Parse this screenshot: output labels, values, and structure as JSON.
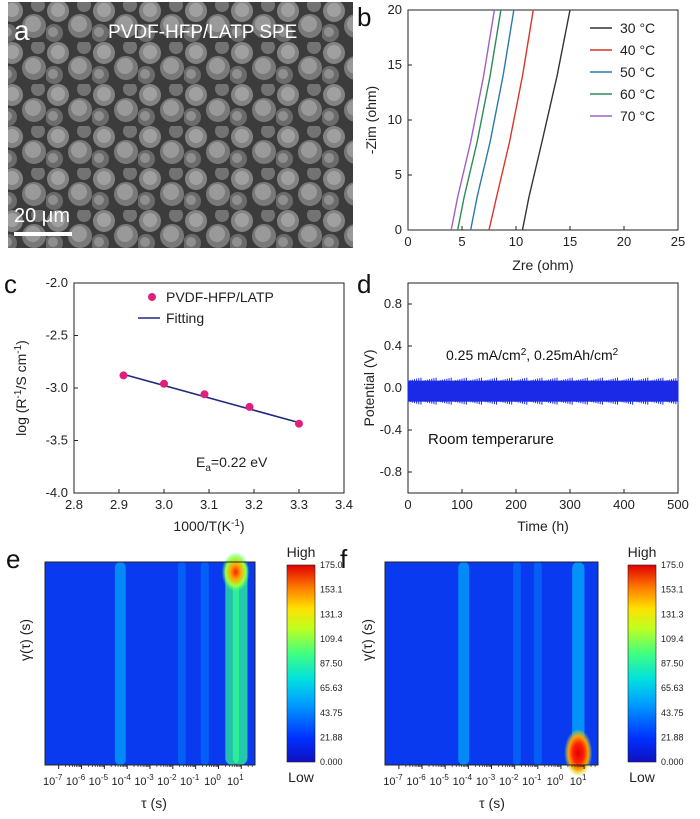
{
  "colors": {
    "sem_bg": "#5a5a5a",
    "nyquist": [
      "#333333",
      "#d9342b",
      "#2a7aa8",
      "#2b8a5a",
      "#a060c0"
    ],
    "arrhenius_points": "#e0207a",
    "fit_line": "#1f2a80",
    "cycling": "#1a2be6",
    "colormap": [
      "#1010c0",
      "#0040ff",
      "#00a0ff",
      "#00e0e0",
      "#40ff80",
      "#c0ff20",
      "#ffe000",
      "#ff8000",
      "#ff2000",
      "#d00000"
    ]
  },
  "panels": {
    "a": "a",
    "b": "b",
    "c": "c",
    "d": "d",
    "e": "e",
    "f": "f"
  },
  "panel_a": {
    "title": "PVDF-HFP/LATP SPE",
    "scale_bar": "20 μm"
  },
  "chart_data": [
    {
      "id": "b",
      "type": "line",
      "xlabel": "Zre (ohm)",
      "ylabel": "-Zim (ohm)",
      "xlim": [
        0,
        25
      ],
      "ylim": [
        0,
        20
      ],
      "xticks": [
        "0",
        "5",
        "10",
        "15",
        "20",
        "25"
      ],
      "yticks": [
        "0",
        "5",
        "10",
        "15",
        "20"
      ],
      "legend_position": "top-right",
      "series": [
        {
          "name": "30 °C",
          "x": [
            10.6,
            11.2,
            12.4,
            13.8,
            15.0
          ],
          "y": [
            0,
            3,
            8,
            14,
            20
          ]
        },
        {
          "name": "40 °C",
          "x": [
            7.5,
            8.2,
            9.4,
            10.6,
            11.6
          ],
          "y": [
            0,
            3,
            8,
            14,
            20
          ]
        },
        {
          "name": "50 °C",
          "x": [
            5.8,
            6.4,
            7.6,
            8.8,
            9.8
          ],
          "y": [
            0,
            3,
            8,
            14,
            20
          ]
        },
        {
          "name": "60 °C",
          "x": [
            4.6,
            5.2,
            6.4,
            7.6,
            8.6
          ],
          "y": [
            0,
            3,
            8,
            14,
            20
          ]
        },
        {
          "name": "70 °C",
          "x": [
            4.0,
            4.6,
            5.8,
            7.0,
            8.0
          ],
          "y": [
            0,
            3,
            8,
            14,
            20
          ]
        }
      ]
    },
    {
      "id": "c",
      "type": "scatter",
      "xlabel": "1000/T(K",
      "xlabel_sup": "-1",
      "xlabel_end": ")",
      "ylabel": "log (R",
      "ylabel_sup": "-1",
      "ylabel_mid": "/S cm",
      "ylabel_sup2": "-1",
      "ylabel_end": ")",
      "xlim": [
        2.8,
        3.4
      ],
      "ylim": [
        -4.0,
        -2.0
      ],
      "xticks": [
        "2.8",
        "2.9",
        "3.0",
        "3.1",
        "3.2",
        "3.3",
        "3.4"
      ],
      "yticks": [
        "-4.0",
        "-3.5",
        "-3.0",
        "-2.5",
        "-2.0"
      ],
      "legend": [
        "PVDF-HFP/LATP",
        "Fitting"
      ],
      "legend_position": "top-left",
      "x": [
        2.91,
        3.0,
        3.09,
        3.19,
        3.3
      ],
      "y": [
        -2.88,
        -2.96,
        -3.06,
        -3.18,
        -3.34
      ],
      "fit": {
        "x": [
          2.91,
          3.3
        ],
        "y": [
          -2.87,
          -3.33
        ]
      },
      "annotation": {
        "prefix": "E",
        "sub": "a",
        "value": "=0.22 eV"
      }
    },
    {
      "id": "d",
      "type": "line",
      "xlabel": "Time (h)",
      "ylabel": "Potential (V)",
      "xlim": [
        0,
        500
      ],
      "ylim": [
        -1.0,
        1.0
      ],
      "xticks": [
        "0",
        "100",
        "200",
        "300",
        "400",
        "500"
      ],
      "yticks": [
        "-0.8",
        "-0.4",
        "0.0",
        "0.4",
        "0.8"
      ],
      "band": {
        "x_range": [
          0,
          500
        ],
        "upper": 0.07,
        "lower": -0.13
      },
      "annotation1": {
        "a": "0.25 mA/cm",
        "sup1": "2",
        "b": ", 0.25mAh/cm",
        "sup2": "2"
      },
      "annotation2": "Room temperarure"
    },
    {
      "id": "e",
      "type": "heatmap",
      "xlabel": "τ (s)",
      "ylabel": "γ(τ) (s)",
      "xlim_log10": [
        -7.6,
        1.6
      ],
      "xtick_exponents": [
        "-7",
        "-6",
        "-5",
        "-4",
        "-3",
        "-2",
        "-1",
        "0",
        "1"
      ],
      "colorbar": {
        "top": "High",
        "bottom": "Low",
        "ticks": [
          "175.0",
          "153.1",
          "131.3",
          "109.4",
          "87.50",
          "65.63",
          "43.75",
          "21.88",
          "0.000"
        ]
      },
      "bands": [
        {
          "log_tau": -4.3,
          "intensity": 0.35
        },
        {
          "log_tau": -1.6,
          "intensity": 0.12
        },
        {
          "log_tau": -0.6,
          "intensity": 0.15
        },
        {
          "log_tau": 0.6,
          "intensity": 0.55
        },
        {
          "log_tau": 0.95,
          "intensity": 0.62
        }
      ],
      "hotspots": [
        {
          "log_tau": 0.75,
          "level": 1.0,
          "where": "top"
        }
      ]
    },
    {
      "id": "f",
      "type": "heatmap",
      "xlabel": "τ (s)",
      "ylabel": "γ(τ) (s)",
      "xlim_log10": [
        -7.6,
        1.6
      ],
      "xtick_exponents": [
        "-7",
        "-6",
        "-5",
        "-4",
        "-3",
        "-2",
        "-1",
        "0",
        "1"
      ],
      "colorbar": {
        "top": "High",
        "bottom": "Low",
        "ticks": [
          "175.0",
          "153.1",
          "131.3",
          "109.4",
          "87.50",
          "65.63",
          "43.75",
          "21.88",
          "0.000"
        ]
      },
      "bands": [
        {
          "log_tau": -4.2,
          "intensity": 0.35
        },
        {
          "log_tau": -1.9,
          "intensity": 0.12
        },
        {
          "log_tau": -1.0,
          "intensity": 0.14
        },
        {
          "log_tau": 0.75,
          "intensity": 0.45
        }
      ],
      "hotspots": [
        {
          "log_tau": 0.75,
          "level": 1.0,
          "where": "bottom"
        }
      ]
    }
  ]
}
